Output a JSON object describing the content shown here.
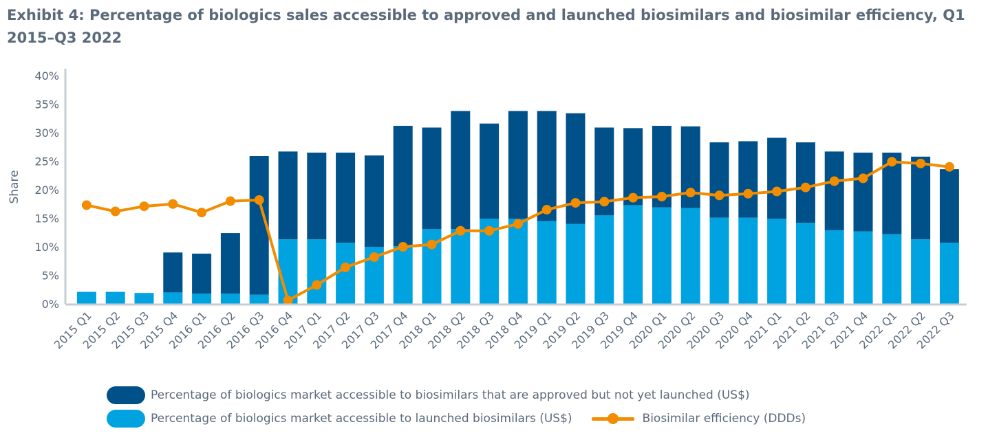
{
  "title": "Exhibit 4: Percentage of biologics sales accessible to approved and launched biosimilars and biosimilar efficiency, Q1 2015–Q3 2022",
  "colors": {
    "approved_not_launched": "#00508a",
    "launched": "#00a3e0",
    "efficiency": "#f28c00",
    "axis": "#c7cdd3",
    "text": "#5b6a7b"
  },
  "legend": {
    "approved_not_launched": "Percentage of biologics market accessible to biosimilars that are approved but not yet launched (US$)",
    "launched": "Percentage of biologics market accessible to launched biosimilars (US$)",
    "efficiency": "Biosimilar efficiency (DDDs)"
  },
  "chart_data": {
    "type": "bar",
    "stacked": true,
    "ylabel": "Share",
    "ylim": [
      0,
      40
    ],
    "yticks": [
      "0%",
      "5%",
      "10%",
      "15%",
      "20%",
      "25%",
      "30%",
      "35%",
      "40%"
    ],
    "categories": [
      "2015 Q1",
      "2015 Q2",
      "2015 Q3",
      "2015 Q4",
      "2016 Q1",
      "2016 Q2",
      "2016 Q3",
      "2016 Q4",
      "2017 Q1",
      "2017 Q2",
      "2017 Q3",
      "2017 Q4",
      "2018 Q1",
      "2018 Q2",
      "2018 Q3",
      "2018 Q4",
      "2019 Q1",
      "2019 Q2",
      "2019 Q3",
      "2019 Q4",
      "2020 Q1",
      "2020 Q2",
      "2020 Q3",
      "2020 Q4",
      "2021 Q1",
      "2021 Q2",
      "2021 Q3",
      "2021 Q4",
      "2022 Q1",
      "2022 Q2",
      "2022 Q3"
    ],
    "series": [
      {
        "name": "Percentage of biologics market accessible to launched biosimilars (US$)",
        "kind": "bar",
        "values": [
          2.1,
          2.1,
          1.9,
          2.0,
          1.8,
          1.8,
          1.6,
          11.3,
          11.3,
          10.7,
          10.0,
          10.1,
          13.1,
          13.1,
          14.9,
          14.9,
          14.5,
          14.0,
          15.5,
          17.3,
          16.9,
          16.8,
          15.1,
          15.1,
          14.9,
          14.2,
          12.9,
          12.7,
          12.2,
          11.3,
          10.7
        ]
      },
      {
        "name": "Percentage of biologics market accessible to biosimilars that are approved but not yet launched (US$)",
        "kind": "bar",
        "values": [
          0,
          0,
          0,
          7.0,
          7.0,
          10.6,
          24.3,
          15.4,
          15.2,
          15.8,
          16.0,
          21.1,
          17.8,
          20.7,
          16.7,
          18.9,
          19.3,
          19.4,
          15.4,
          13.5,
          14.3,
          14.3,
          13.2,
          13.4,
          14.2,
          14.1,
          13.8,
          13.8,
          14.3,
          14.5,
          12.9
        ]
      },
      {
        "name": "Biosimilar efficiency (DDDs)",
        "kind": "line",
        "values": [
          17.3,
          16.2,
          17.1,
          17.5,
          16.0,
          18.0,
          18.2,
          0.6,
          3.3,
          6.4,
          8.2,
          10.0,
          10.4,
          12.8,
          12.8,
          14.0,
          16.5,
          17.7,
          17.9,
          18.6,
          18.8,
          19.5,
          19.0,
          19.3,
          19.7,
          20.4,
          21.5,
          22.0,
          24.9,
          24.6,
          24.0
        ]
      }
    ],
    "grid": false,
    "legend_position": "bottom"
  }
}
